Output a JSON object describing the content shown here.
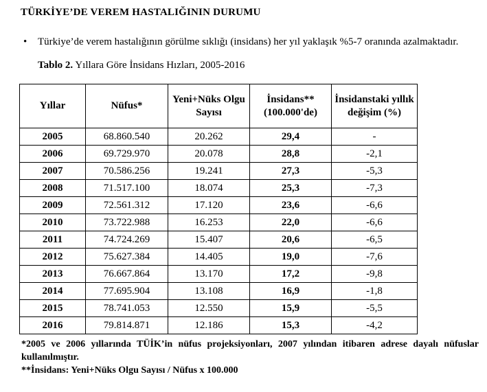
{
  "page": {
    "title": "TÜRKİYE’DE VEREM HASTALIĞININ DURUMU",
    "bullet": {
      "marker": "•",
      "text": "Türkiye’de verem hastalığının görülme sıklığı (insidans) her yıl yaklaşık %5-7 oranında azalmaktadır."
    },
    "table_caption": {
      "label": "Tablo 2.",
      "text": " Yıllara Göre İnsidans Hızları, 2005-2016"
    }
  },
  "table": {
    "columns": [
      "Yıllar",
      "Nüfus*",
      "Yeni+Nüks Olgu Sayısı",
      "İnsidans** (100.000'de)",
      "İnsidanstaki yıllık değişim (%)"
    ],
    "rows": [
      {
        "year": "2005",
        "population": "68.860.540",
        "cases": "20.262",
        "incidence": "29,4",
        "change": "-"
      },
      {
        "year": "2006",
        "population": "69.729.970",
        "cases": "20.078",
        "incidence": "28,8",
        "change": "-2,1"
      },
      {
        "year": "2007",
        "population": "70.586.256",
        "cases": "19.241",
        "incidence": "27,3",
        "change": "-5,3"
      },
      {
        "year": "2008",
        "population": "71.517.100",
        "cases": "18.074",
        "incidence": "25,3",
        "change": "-7,3"
      },
      {
        "year": "2009",
        "population": "72.561.312",
        "cases": "17.120",
        "incidence": "23,6",
        "change": "-6,6"
      },
      {
        "year": "2010",
        "population": "73.722.988",
        "cases": "16.253",
        "incidence": "22,0",
        "change": "-6,6"
      },
      {
        "year": "2011",
        "population": "74.724.269",
        "cases": "15.407",
        "incidence": "20,6",
        "change": "-6,5"
      },
      {
        "year": "2012",
        "population": "75.627.384",
        "cases": "14.405",
        "incidence": "19,0",
        "change": "-7,6"
      },
      {
        "year": "2013",
        "population": "76.667.864",
        "cases": "13.170",
        "incidence": "17,2",
        "change": "-9,8"
      },
      {
        "year": "2014",
        "population": "77.695.904",
        "cases": "13.108",
        "incidence": "16,9",
        "change": "-1,8"
      },
      {
        "year": "2015",
        "population": "78.741.053",
        "cases": "12.550",
        "incidence": "15,9",
        "change": "-5,5"
      },
      {
        "year": "2016",
        "population": "79.814.871",
        "cases": "12.186",
        "incidence": "15,3",
        "change": "-4,2"
      }
    ]
  },
  "footnotes": {
    "note1": "*2005 ve 2006 yıllarında TÜİK’in nüfus projeksiyonları, 2007 yılından itibaren adrese dayalı nüfuslar kullanılmıştır.",
    "note2": "**İnsidans: Yeni+Nüks Olgu Sayısı / Nüfus x 100.000"
  }
}
